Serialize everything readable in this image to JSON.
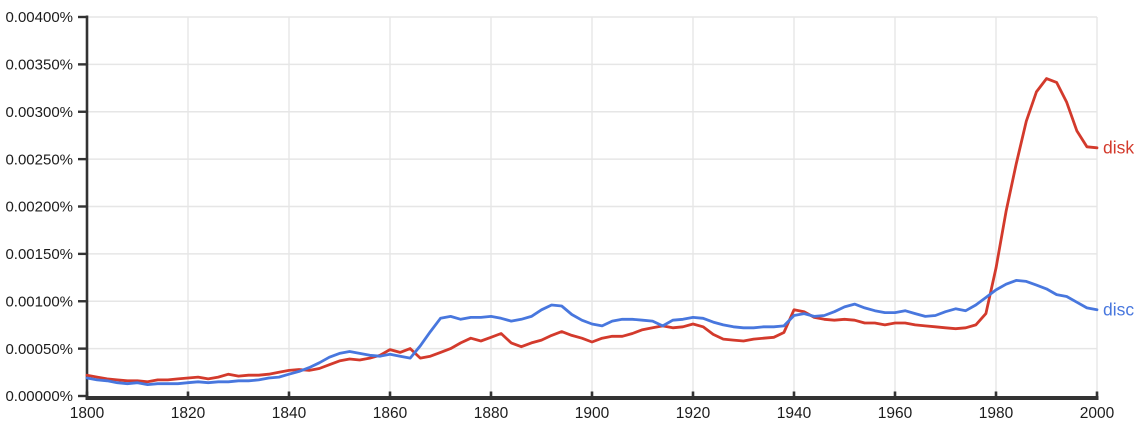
{
  "chart_data": {
    "type": "line",
    "title": "",
    "xlabel": "",
    "ylabel": "",
    "xlim": [
      1800,
      2000
    ],
    "ylim": [
      0,
      0.004
    ],
    "grid": true,
    "legend_position": "line-end-labels-right",
    "y_ticks": [
      {
        "value": 0.0,
        "label": "0.00000%"
      },
      {
        "value": 0.0005,
        "label": "0.00050%"
      },
      {
        "value": 0.001,
        "label": "0.00100%"
      },
      {
        "value": 0.0015,
        "label": "0.00150%"
      },
      {
        "value": 0.002,
        "label": "0.00200%"
      },
      {
        "value": 0.0025,
        "label": "0.00250%"
      },
      {
        "value": 0.003,
        "label": "0.00300%"
      },
      {
        "value": 0.0035,
        "label": "0.00350%"
      },
      {
        "value": 0.004,
        "label": "0.00400%"
      }
    ],
    "x_ticks": [
      {
        "value": 1800,
        "label": "1800"
      },
      {
        "value": 1820,
        "label": "1820"
      },
      {
        "value": 1840,
        "label": "1840"
      },
      {
        "value": 1860,
        "label": "1860"
      },
      {
        "value": 1880,
        "label": "1880"
      },
      {
        "value": 1900,
        "label": "1900"
      },
      {
        "value": 1920,
        "label": "1920"
      },
      {
        "value": 1940,
        "label": "1940"
      },
      {
        "value": 1960,
        "label": "1960"
      },
      {
        "value": 1980,
        "label": "1980"
      },
      {
        "value": 2000,
        "label": "2000"
      }
    ],
    "x_range": {
      "start": 1800,
      "end": 2000,
      "step": 2
    },
    "series": [
      {
        "name": "disk",
        "color": "#d33a2c",
        "values": [
          0.00022,
          0.0002,
          0.00018,
          0.00017,
          0.00016,
          0.00016,
          0.00015,
          0.00017,
          0.00017,
          0.00018,
          0.00019,
          0.0002,
          0.00018,
          0.0002,
          0.00023,
          0.00021,
          0.00022,
          0.00022,
          0.00023,
          0.00025,
          0.00027,
          0.00028,
          0.00027,
          0.00029,
          0.00033,
          0.00037,
          0.00039,
          0.00038,
          0.0004,
          0.00043,
          0.00049,
          0.00046,
          0.0005,
          0.0004,
          0.00042,
          0.00046,
          0.0005,
          0.00056,
          0.00061,
          0.00058,
          0.00062,
          0.00066,
          0.00056,
          0.00052,
          0.00056,
          0.00059,
          0.00064,
          0.00068,
          0.00064,
          0.00061,
          0.00057,
          0.00061,
          0.00063,
          0.00063,
          0.00066,
          0.0007,
          0.00072,
          0.00074,
          0.00072,
          0.00073,
          0.00076,
          0.00073,
          0.00065,
          0.0006,
          0.00059,
          0.00058,
          0.0006,
          0.00061,
          0.00062,
          0.00067,
          0.00091,
          0.00089,
          0.00083,
          0.00081,
          0.0008,
          0.00081,
          0.0008,
          0.00077,
          0.00077,
          0.00075,
          0.00077,
          0.00077,
          0.00075,
          0.00074,
          0.00073,
          0.00072,
          0.00071,
          0.00072,
          0.00075,
          0.00087,
          0.00135,
          0.00195,
          0.00245,
          0.0029,
          0.00321,
          0.00335,
          0.00331,
          0.0031,
          0.0028,
          0.00263,
          0.00262
        ]
      },
      {
        "name": "disc",
        "color": "#4877de",
        "values": [
          0.00019,
          0.00017,
          0.00016,
          0.00014,
          0.00013,
          0.00014,
          0.00012,
          0.00013,
          0.00013,
          0.00013,
          0.00014,
          0.00015,
          0.00014,
          0.00015,
          0.00015,
          0.00016,
          0.00016,
          0.00017,
          0.00019,
          0.0002,
          0.00023,
          0.00026,
          0.0003,
          0.00035,
          0.00041,
          0.00045,
          0.00047,
          0.00045,
          0.00043,
          0.00042,
          0.00044,
          0.00042,
          0.0004,
          0.00053,
          0.00068,
          0.00082,
          0.00084,
          0.00081,
          0.00083,
          0.00083,
          0.00084,
          0.00082,
          0.00079,
          0.00081,
          0.00084,
          0.00091,
          0.00096,
          0.00095,
          0.00086,
          0.0008,
          0.00076,
          0.00074,
          0.00079,
          0.00081,
          0.00081,
          0.0008,
          0.00079,
          0.00074,
          0.0008,
          0.00081,
          0.00083,
          0.00082,
          0.00078,
          0.00075,
          0.00073,
          0.00072,
          0.00072,
          0.00073,
          0.00073,
          0.00074,
          0.00085,
          0.00087,
          0.00084,
          0.00085,
          0.00089,
          0.00094,
          0.00097,
          0.00093,
          0.0009,
          0.00088,
          0.00088,
          0.0009,
          0.00087,
          0.00084,
          0.00085,
          0.00089,
          0.00092,
          0.0009,
          0.00096,
          0.00104,
          0.00112,
          0.00118,
          0.00122,
          0.00121,
          0.00117,
          0.00113,
          0.00107,
          0.00105,
          0.00099,
          0.00093,
          0.00091
        ]
      }
    ],
    "colors": {
      "gridline": "#e6e6e6",
      "axis": "#333333",
      "tick_label": "#1c1c1c",
      "background": "#ffffff"
    }
  }
}
